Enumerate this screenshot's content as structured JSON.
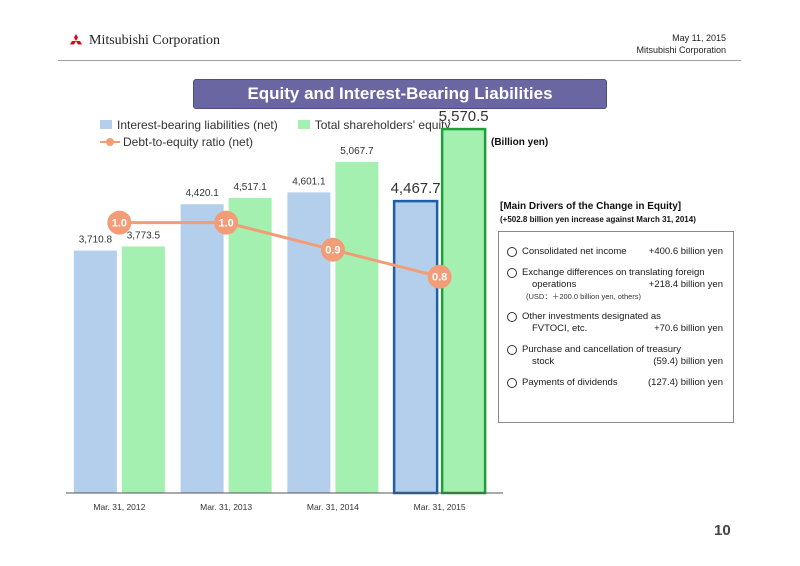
{
  "header": {
    "company": "Mitsubishi Corporation",
    "date": "May 11, 2015",
    "issuer": "Mitsubishi Corporation"
  },
  "title": "Equity and Interest-Bearing Liabilities",
  "legend": {
    "liabilities": "Interest-bearing liabilities (net)",
    "equity": "Total shareholders' equity",
    "ratio": "Debt-to-equity ratio (net)"
  },
  "unit": "(Billion yen)",
  "colors": {
    "liabilities_fill": "#b4cfec",
    "equity_fill": "#a4f0b0",
    "ratio_line": "#f29c78",
    "highlight_liabilities_border": "#1f5ea8",
    "highlight_equity_border": "#1f9e3a",
    "title_bar": "#6a66a2"
  },
  "chart_data": {
    "type": "bar",
    "categories": [
      "Mar. 31, 2012",
      "Mar. 31, 2013",
      "Mar. 31, 2014",
      "Mar. 31, 2015"
    ],
    "series": [
      {
        "name": "Interest-bearing liabilities (net)",
        "values": [
          3710.8,
          4420.1,
          4601.1,
          4467.7
        ],
        "labels": [
          "3,710.8",
          "4,420.1",
          "4,601.1",
          "4,467.7"
        ]
      },
      {
        "name": "Total shareholders' equity",
        "values": [
          3773.5,
          4517.1,
          5067.7,
          5570.5
        ],
        "labels": [
          "3,773.5",
          "4,517.1",
          "5,067.7",
          "5,570.5"
        ]
      }
    ],
    "line_series": {
      "name": "Debt-to-equity ratio (net)",
      "values": [
        1.0,
        1.0,
        0.9,
        0.8
      ],
      "labels": [
        "1.0",
        "1.0",
        "0.9",
        "0.8"
      ]
    },
    "highlight_category": "Mar. 31, 2015",
    "ylim": [
      0,
      6000
    ],
    "ratio_ylim": [
      0.0,
      1.45
    ],
    "grid": false
  },
  "drivers": {
    "title": "[Main Drivers of the Change in Equity]",
    "subtitle": "(+502.8 billion yen increase against March 31, 2014)",
    "items": [
      {
        "label": "Consolidated net income",
        "value": "+400.6 billion yen"
      },
      {
        "label": "Exchange differences on translating foreign",
        "label2": "operations",
        "value": "+218.4 billion yen",
        "note": "(USD：＋200.0 billion yen, others)"
      },
      {
        "label": "Other investments designated as",
        "label2": "FVTOCI, etc.",
        "value": "+70.6 billion yen"
      },
      {
        "label": "Purchase and cancellation of treasury",
        "label2": "stock",
        "value": "(59.4) billion yen"
      },
      {
        "label": "Payments of dividends",
        "value": "(127.4) billion yen"
      }
    ]
  },
  "page_number": "10"
}
